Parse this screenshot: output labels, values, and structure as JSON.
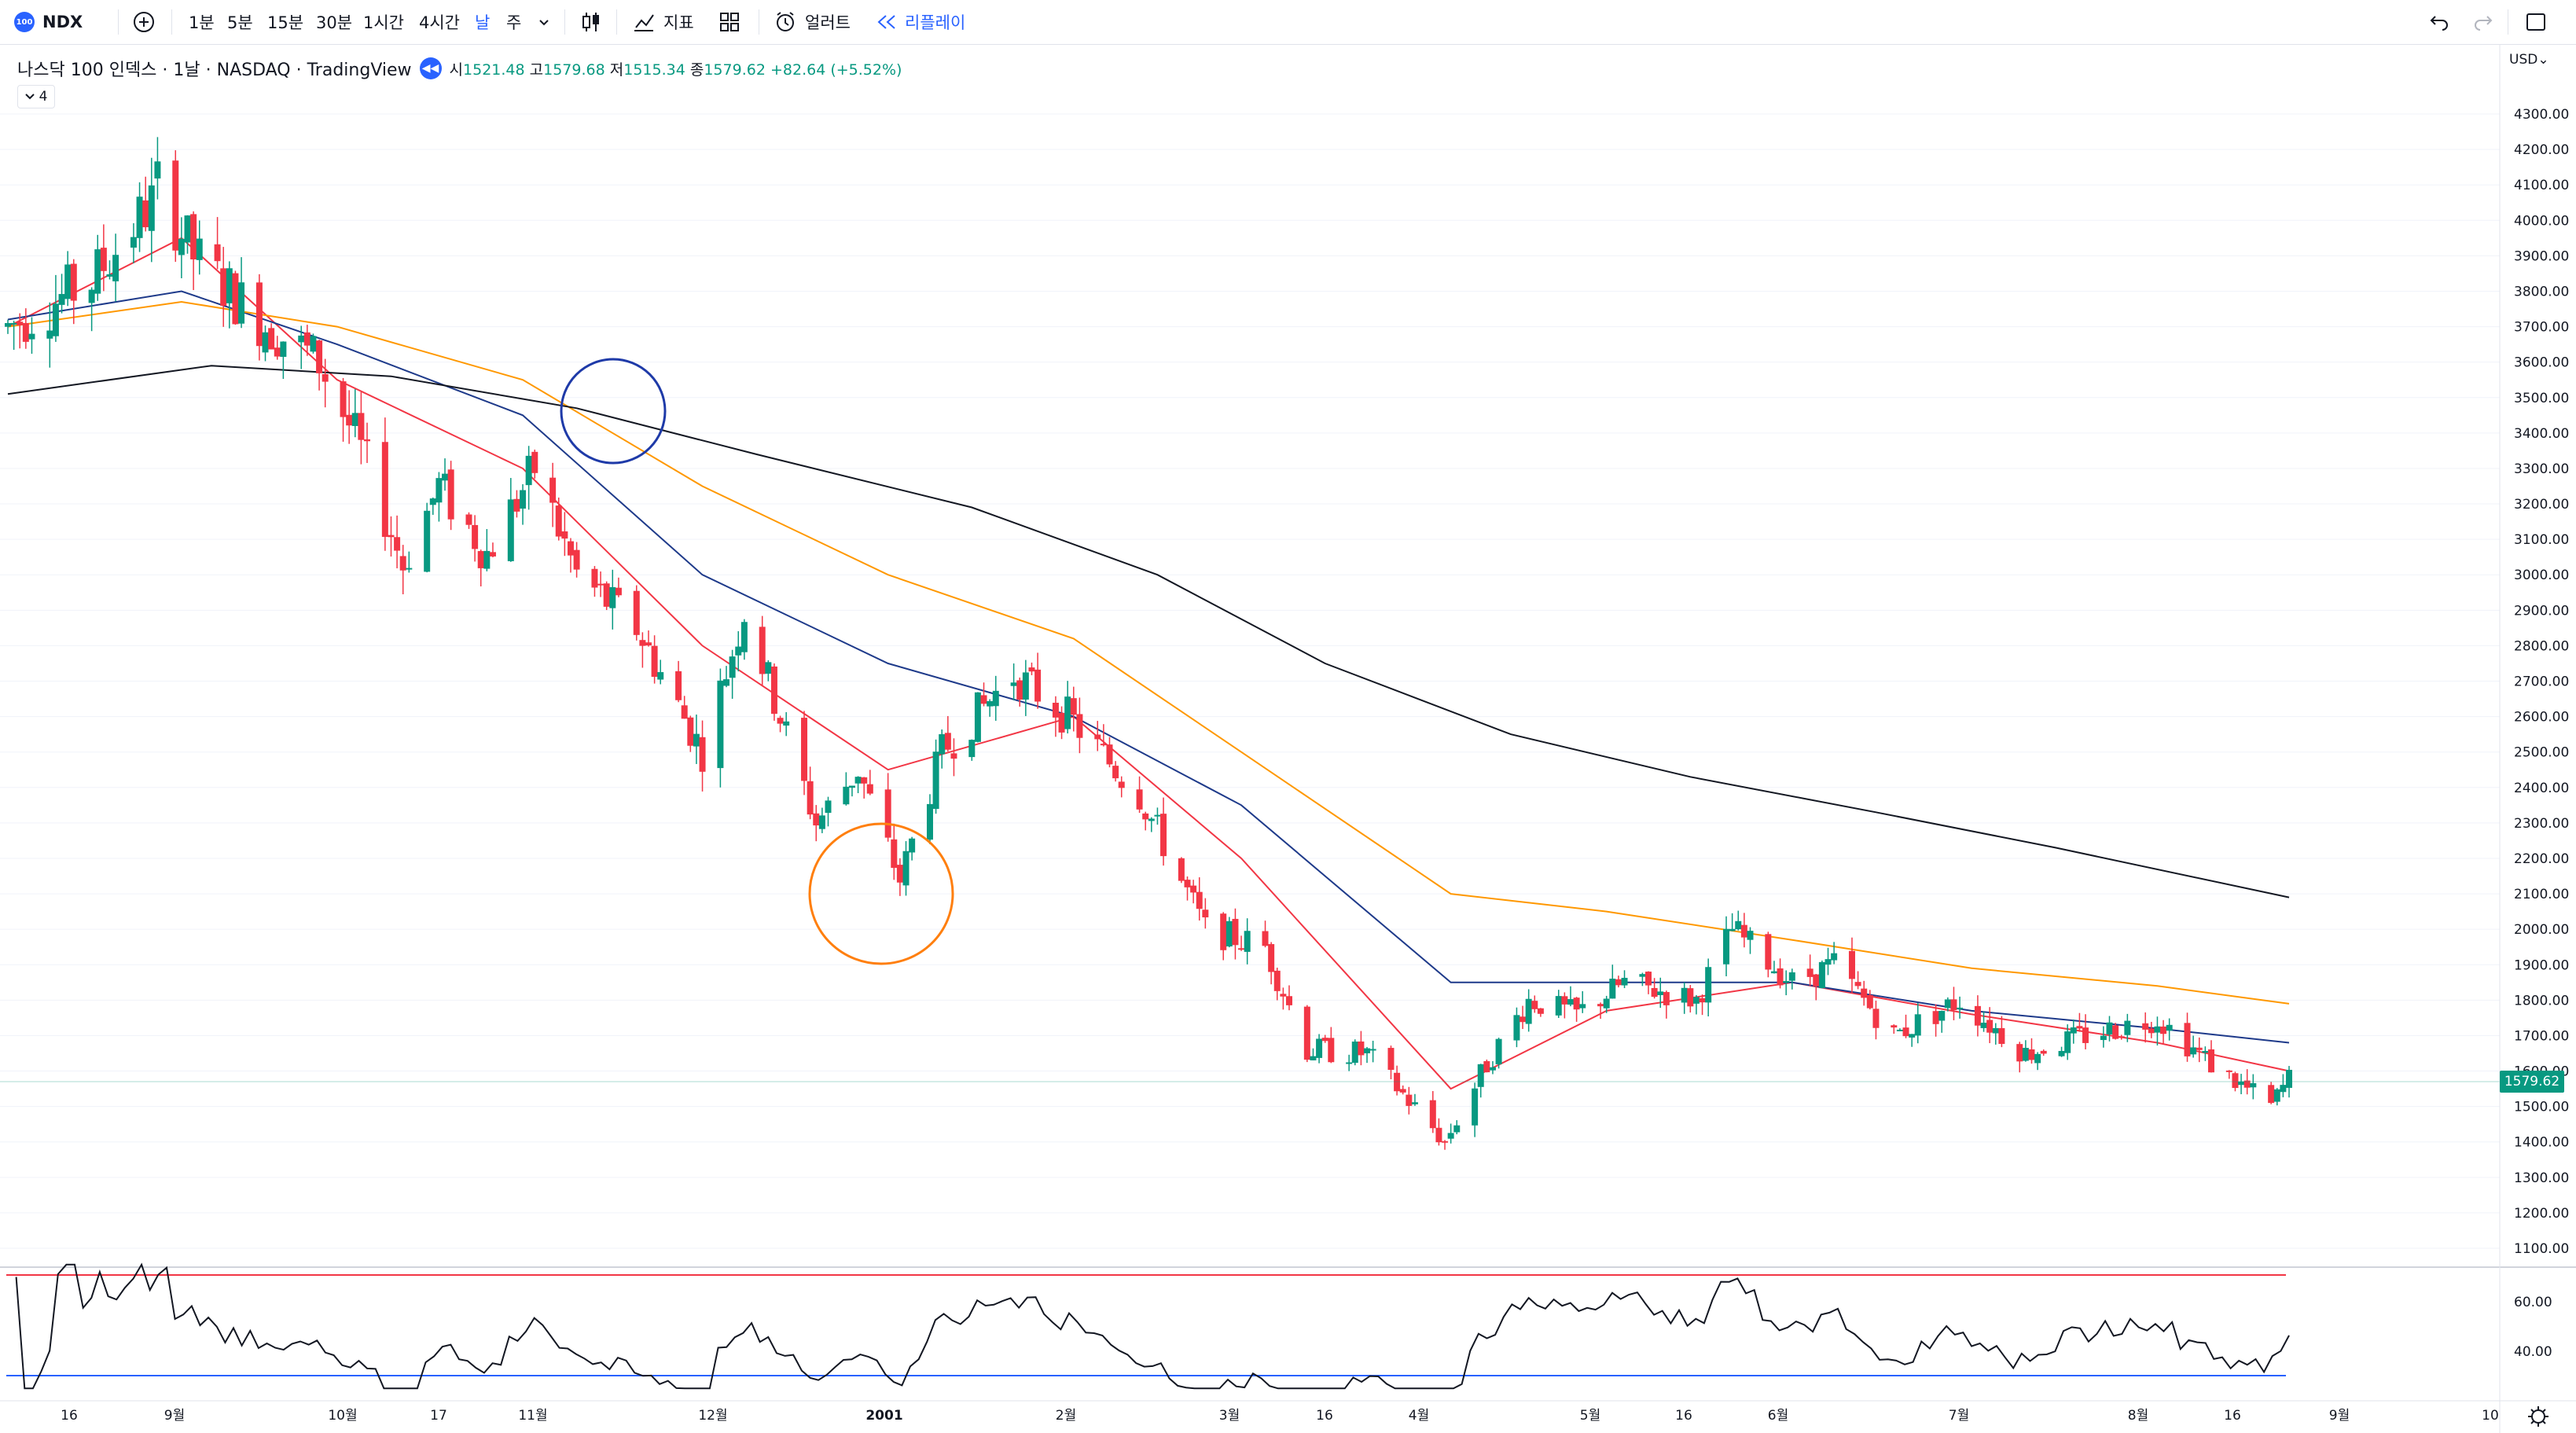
{
  "toolbar": {
    "symbol_badge": "100",
    "symbol": "NDX",
    "intervals": [
      "1분",
      "5분",
      "15분",
      "30분",
      "1시간",
      "4시간",
      "날",
      "주"
    ],
    "active_interval": "날",
    "indicators_label": "지표",
    "alert_label": "얼러트",
    "replay_label": "리플레이"
  },
  "legend": {
    "title": "나스닥 100 인덱스 · 1날 · NASDAQ · TradingView",
    "open_label": "시",
    "open": "1521.48",
    "high_label": "고",
    "high": "1579.68",
    "low_label": "저",
    "low": "1515.34",
    "close_label": "종",
    "close": "1579.62",
    "change": "+82.64 (+5.52%)",
    "indicator_toggle_count": "4"
  },
  "price_scale": {
    "currency": "USD",
    "last_price": "1579.62",
    "labels": [
      "4300.00",
      "4200.00",
      "4100.00",
      "4000.00",
      "3900.00",
      "3800.00",
      "3700.00",
      "3600.00",
      "3500.00",
      "3400.00",
      "3300.00",
      "3200.00",
      "3100.00",
      "3000.00",
      "2900.00",
      "2800.00",
      "2700.00",
      "2600.00",
      "2500.00",
      "2400.00",
      "2300.00",
      "2200.00",
      "2100.00",
      "2000.00",
      "1900.00",
      "1800.00",
      "1700.00",
      "1600.00",
      "1500.00",
      "1400.00",
      "1300.00",
      "1200.00",
      "1100.00"
    ]
  },
  "rsi_scale": {
    "labels": [
      "60.00",
      "40.00"
    ]
  },
  "time_axis": {
    "labels": [
      "16",
      "9월",
      "10월",
      "17",
      "11월",
      "12월",
      "2001",
      "2월",
      "3월",
      "16",
      "4월",
      "5월",
      "16",
      "6월",
      "7월",
      "8월",
      "16",
      "9월",
      "10"
    ]
  },
  "colors": {
    "up": "#089981",
    "down": "#f23645",
    "ema_fast": "#f23645",
    "ema_mid": "#1e3a8a",
    "ema_slow": "#ff9800",
    "sma_long": "#131722",
    "rsi_line": "#131722",
    "rsi_upper": "#f23645",
    "rsi_lower": "#2962ff",
    "circle_blue": "#1e3aa8",
    "circle_orange": "#ff7f0e"
  },
  "chart_data": {
    "type": "candlestick",
    "series_values_note": "",
    "close_waypoints": [
      [
        "2000-08-07",
        3700
      ],
      [
        "2000-08-21",
        3830
      ],
      [
        "2000-08-31",
        4050
      ],
      [
        "2000-09-01",
        4100
      ],
      [
        "2000-09-07",
        3900
      ],
      [
        "2000-09-18",
        3720
      ],
      [
        "2000-09-28",
        3600
      ],
      [
        "2000-10-05",
        3350
      ],
      [
        "2000-10-12",
        3030
      ],
      [
        "2000-10-18",
        3250
      ],
      [
        "2000-10-26",
        3060
      ],
      [
        "2000-11-03",
        3300
      ],
      [
        "2000-11-10",
        3000
      ],
      [
        "2000-11-20",
        2850
      ],
      [
        "2000-12-01",
        2500
      ],
      [
        "2000-12-08",
        2900
      ],
      [
        "2000-12-20",
        2300
      ],
      [
        "2000-12-27",
        2450
      ],
      [
        "2001-01-03",
        2140
      ],
      [
        "2001-01-10",
        2500
      ],
      [
        "2001-01-22",
        2720
      ],
      [
        "2001-01-31",
        2600
      ],
      [
        "2001-02-12",
        2380
      ],
      [
        "2001-02-23",
        2000
      ],
      [
        "2001-03-05",
        1950
      ],
      [
        "2001-03-12",
        1660
      ],
      [
        "2001-03-22",
        1650
      ],
      [
        "2001-04-04",
        1400
      ],
      [
        "2001-04-11",
        1620
      ],
      [
        "2001-04-18",
        1800
      ],
      [
        "2001-04-26",
        1760
      ],
      [
        "2001-05-04",
        1850
      ],
      [
        "2001-05-16",
        1800
      ],
      [
        "2001-05-22",
        2000
      ],
      [
        "2001-06-01",
        1850
      ],
      [
        "2001-06-08",
        1900
      ],
      [
        "2001-06-18",
        1700
      ],
      [
        "2001-06-29",
        1800
      ],
      [
        "2001-07-10",
        1650
      ],
      [
        "2001-07-20",
        1700
      ],
      [
        "2001-08-01",
        1750
      ],
      [
        "2001-08-10",
        1620
      ],
      [
        "2001-08-20",
        1500
      ],
      [
        "2001-08-23",
        1580
      ]
    ],
    "moving_averages": [
      {
        "name": "ema_fast",
        "points": [
          [
            "2000-08-07",
            3700
          ],
          [
            "2000-09-05",
            3950
          ],
          [
            "2000-10-01",
            3550
          ],
          [
            "2000-11-01",
            3300
          ],
          [
            "2000-12-01",
            2800
          ],
          [
            "2001-01-01",
            2450
          ],
          [
            "2001-02-01",
            2600
          ],
          [
            "2001-03-01",
            2200
          ],
          [
            "2001-04-05",
            1550
          ],
          [
            "2001-05-01",
            1770
          ],
          [
            "2001-06-01",
            1850
          ],
          [
            "2001-07-01",
            1760
          ],
          [
            "2001-08-01",
            1680
          ],
          [
            "2001-08-23",
            1600
          ]
        ]
      },
      {
        "name": "ema_mid",
        "points": [
          [
            "2000-08-07",
            3720
          ],
          [
            "2000-09-05",
            3800
          ],
          [
            "2000-10-01",
            3650
          ],
          [
            "2000-11-01",
            3450
          ],
          [
            "2000-12-01",
            3000
          ],
          [
            "2001-01-01",
            2750
          ],
          [
            "2001-02-01",
            2600
          ],
          [
            "2001-03-01",
            2350
          ],
          [
            "2001-04-05",
            1850
          ],
          [
            "2001-05-01",
            1850
          ],
          [
            "2001-06-01",
            1850
          ],
          [
            "2001-07-01",
            1770
          ],
          [
            "2001-08-01",
            1720
          ],
          [
            "2001-08-23",
            1680
          ]
        ]
      },
      {
        "name": "ema_slow",
        "points": [
          [
            "2000-08-07",
            3700
          ],
          [
            "2000-09-05",
            3770
          ],
          [
            "2000-10-01",
            3700
          ],
          [
            "2000-11-01",
            3550
          ],
          [
            "2000-12-01",
            3250
          ],
          [
            "2001-01-01",
            3000
          ],
          [
            "2001-02-01",
            2820
          ],
          [
            "2001-03-01",
            2500
          ],
          [
            "2001-04-05",
            2100
          ],
          [
            "2001-05-01",
            2050
          ],
          [
            "2001-06-01",
            1970
          ],
          [
            "2001-07-01",
            1890
          ],
          [
            "2001-08-01",
            1840
          ],
          [
            "2001-08-23",
            1790
          ]
        ]
      },
      {
        "name": "sma_long",
        "points": [
          [
            "2000-08-07",
            3510
          ],
          [
            "2000-09-10",
            3590
          ],
          [
            "2000-10-10",
            3560
          ],
          [
            "2000-11-10",
            3470
          ],
          [
            "2000-12-10",
            3340
          ],
          [
            "2001-01-15",
            3190
          ],
          [
            "2001-02-15",
            3000
          ],
          [
            "2001-03-15",
            2750
          ],
          [
            "2001-04-15",
            2550
          ],
          [
            "2001-05-15",
            2430
          ],
          [
            "2001-06-15",
            2330
          ],
          [
            "2001-07-15",
            2230
          ],
          [
            "2001-08-23",
            2090
          ]
        ]
      }
    ],
    "rsi": {
      "levels": [
        70,
        30
      ],
      "end_value": 38
    },
    "ylim": [
      1100,
      4400
    ]
  }
}
